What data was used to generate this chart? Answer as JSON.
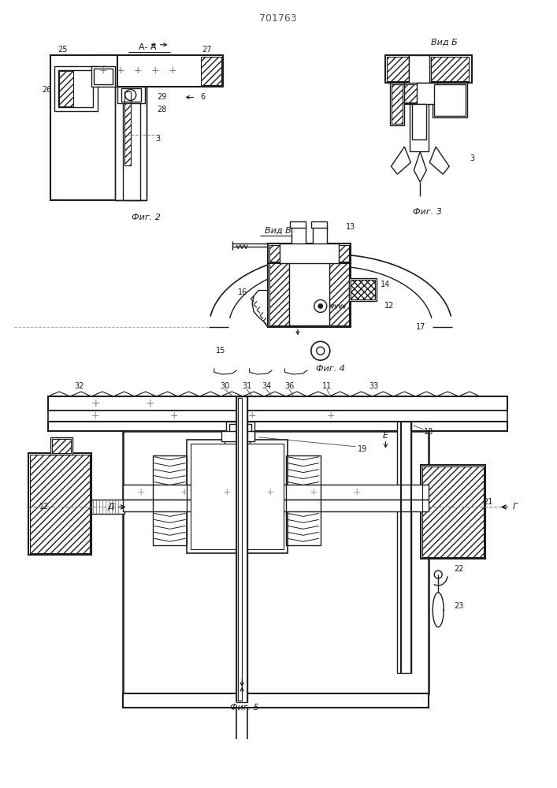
{
  "title": "701763",
  "lc": "#1c1c1c",
  "fig2_label": "Фиг. 2",
  "fig3_label": "Фиг. 3",
  "fig4_label": "Фиг. 4",
  "fig5_label": "Фиг. 5",
  "vidB_label": "Вид Б",
  "vidV_label": "Вид В",
  "AA_label": "A- A"
}
